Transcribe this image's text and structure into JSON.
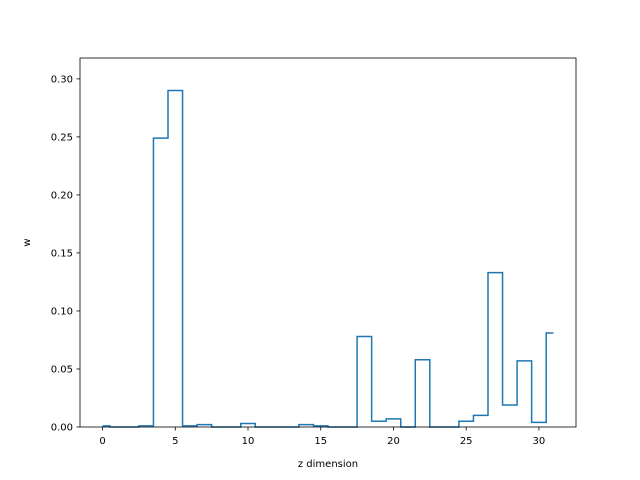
{
  "chart_data": {
    "type": "line",
    "step": "post",
    "xlabel": "z dimension",
    "ylabel": "w",
    "xlim": [
      -1.55,
      32.55
    ],
    "ylim": [
      0,
      0.318
    ],
    "xticks": [
      0,
      5,
      10,
      15,
      20,
      25,
      30
    ],
    "yticks": [
      0.0,
      0.05,
      0.1,
      0.15,
      0.2,
      0.25,
      0.3
    ],
    "xtick_labels": [
      "0",
      "5",
      "10",
      "15",
      "20",
      "25",
      "30"
    ],
    "ytick_labels": [
      "0.00",
      "0.05",
      "0.10",
      "0.15",
      "0.20",
      "0.25",
      "0.30"
    ],
    "grid": false,
    "color": "#1f77b4",
    "x": [
      0,
      1,
      2,
      3,
      4,
      5,
      6,
      7,
      8,
      9,
      10,
      11,
      12,
      13,
      14,
      15,
      16,
      17,
      18,
      19,
      20,
      21,
      22,
      23,
      24,
      25,
      26,
      27,
      28,
      29,
      30,
      31
    ],
    "values": [
      0.001,
      0.0,
      0.0,
      0.001,
      0.249,
      0.29,
      0.001,
      0.002,
      0.0,
      0.0,
      0.003,
      0.0,
      0.0,
      0.0,
      0.002,
      0.001,
      0.0,
      0.0,
      0.078,
      0.005,
      0.007,
      0.0,
      0.058,
      0.0,
      0.0,
      0.005,
      0.01,
      0.133,
      0.019,
      0.057,
      0.004,
      0.081
    ]
  }
}
